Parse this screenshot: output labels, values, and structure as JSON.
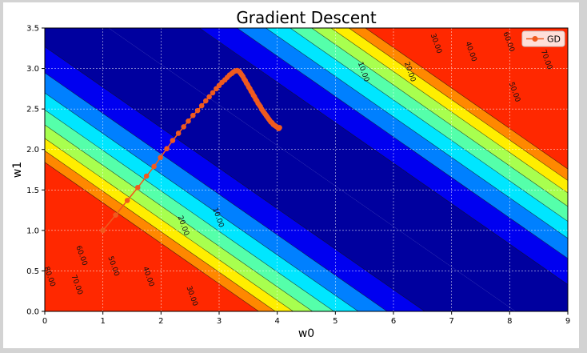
{
  "chart_data": {
    "type": "contour",
    "title": "Gradient Descent",
    "xlabel": "w0",
    "ylabel": "w1",
    "xlim": [
      0,
      9
    ],
    "ylim": [
      0,
      3.5
    ],
    "xticks": [
      "0",
      "1",
      "2",
      "3",
      "4",
      "5",
      "6",
      "7",
      "8",
      "9"
    ],
    "yticks": [
      "0.0",
      "0.5",
      "1.0",
      "1.5",
      "2.0",
      "2.5",
      "3.0",
      "3.5"
    ],
    "grid": true,
    "legend": {
      "position": "top-right",
      "entries": [
        "GD"
      ]
    },
    "contour_levels": [
      10,
      20,
      30,
      40,
      50,
      60,
      70,
      80
    ],
    "contour_band_colors": [
      "#00009f",
      "#0000f0",
      "#0080ff",
      "#00e6ff",
      "#55ffaa",
      "#a8ff4f",
      "#ffee00",
      "#ff8800",
      "#ff2800",
      "#b00000"
    ],
    "contour_level_labels": [
      {
        "text": "10.00",
        "x": 2.95,
        "y": 1.15
      },
      {
        "text": "20.00",
        "x": 2.35,
        "y": 1.05
      },
      {
        "text": "30.00",
        "x": 2.5,
        "y": 0.18
      },
      {
        "text": "40.00",
        "x": 1.75,
        "y": 0.42
      },
      {
        "text": "50.00",
        "x": 1.15,
        "y": 0.55
      },
      {
        "text": "60.00",
        "x": 0.6,
        "y": 0.68
      },
      {
        "text": "70.00",
        "x": 0.52,
        "y": 0.32
      },
      {
        "text": "80.00",
        "x": 0.05,
        "y": 0.42
      },
      {
        "text": "10.00",
        "x": 5.45,
        "y": 2.95
      },
      {
        "text": "20.00",
        "x": 6.25,
        "y": 2.95
      },
      {
        "text": "30.00",
        "x": 6.7,
        "y": 3.3
      },
      {
        "text": "40.00",
        "x": 7.3,
        "y": 3.2
      },
      {
        "text": "50.00",
        "x": 8.05,
        "y": 2.7
      },
      {
        "text": "60.00",
        "x": 7.95,
        "y": 3.32
      },
      {
        "text": "70.00",
        "x": 8.6,
        "y": 3.1
      }
    ],
    "series": [
      {
        "name": "GD",
        "color": "#f05a1e",
        "x": [
          1.0,
          1.22,
          1.42,
          1.6,
          1.75,
          1.88,
          1.99,
          2.1,
          2.2,
          2.3,
          2.39,
          2.47,
          2.55,
          2.63,
          2.7,
          2.77,
          2.83,
          2.89,
          2.95,
          3.0,
          3.05,
          3.1,
          3.14,
          3.18,
          3.22,
          3.25,
          3.28,
          3.31,
          3.33,
          3.35,
          3.37,
          3.39,
          3.41,
          3.43,
          3.45,
          3.47,
          3.49,
          3.51,
          3.53,
          3.55,
          3.57,
          3.59,
          3.61,
          3.63,
          3.65,
          3.67,
          3.69,
          3.71,
          3.73,
          3.75,
          3.77,
          3.79,
          3.81,
          3.83,
          3.85,
          3.87,
          3.89,
          3.91,
          3.93,
          3.95,
          3.97,
          3.99,
          4.01,
          4.02,
          4.03,
          4.04
        ],
        "y": [
          1.0,
          1.19,
          1.37,
          1.53,
          1.67,
          1.79,
          1.9,
          2.01,
          2.11,
          2.2,
          2.28,
          2.35,
          2.42,
          2.48,
          2.54,
          2.6,
          2.65,
          2.7,
          2.75,
          2.79,
          2.83,
          2.86,
          2.89,
          2.92,
          2.94,
          2.96,
          2.97,
          2.975,
          2.97,
          2.96,
          2.94,
          2.92,
          2.9,
          2.87,
          2.85,
          2.82,
          2.8,
          2.77,
          2.75,
          2.72,
          2.7,
          2.67,
          2.65,
          2.62,
          2.6,
          2.57,
          2.55,
          2.53,
          2.5,
          2.48,
          2.46,
          2.44,
          2.42,
          2.4,
          2.38,
          2.36,
          2.34,
          2.33,
          2.31,
          2.3,
          2.29,
          2.28,
          2.27,
          2.26,
          2.26,
          2.27
        ]
      }
    ]
  }
}
